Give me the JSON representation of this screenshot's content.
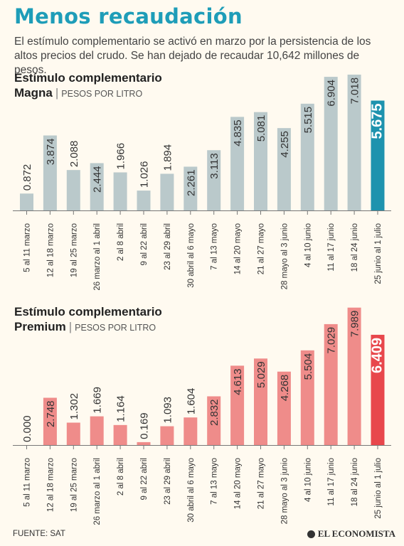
{
  "header": {
    "title": "Menos recaudación",
    "subtitle": "El estímulo complementario se activó en marzo por la persistencia de los altos precios del crudo. Se han dejado de recaudar 10,642 millones de pesos."
  },
  "footer": {
    "source": "FUENTE: SAT",
    "brand": "EL ECONOMISTA"
  },
  "chart_data": [
    {
      "type": "bar",
      "title_line1": "Estímulo complementario",
      "title_line2": "Magna",
      "unit": "PESOS POR LITRO",
      "categories": [
        "5 al 11 marzo",
        "12 al 18 marzo",
        "19 al 25 marzo",
        "26 marzo al 1 abril",
        "2 al 8 abril",
        "9 al 22 abril",
        "23 al 29  abril",
        "30 abril al 6 mayo",
        "7 al 13 mayo",
        "14 al 20 mayo",
        "21 al 27 mayo",
        "28 mayo al 3 junio",
        "4 al 10 junio",
        "11 al 17 junio",
        "18 al 24 junio",
        "25 junio al 1 julio"
      ],
      "values": [
        0.872,
        3.874,
        2.088,
        2.444,
        1.966,
        1.026,
        1.894,
        2.261,
        3.113,
        4.835,
        5.081,
        4.255,
        5.515,
        6.904,
        7.018,
        5.675
      ],
      "labels": [
        "0.872",
        "3.874",
        "2.088",
        "2.444",
        "1.966",
        "1.026",
        "1.894",
        "2.261",
        "3.113",
        "4.835",
        "5.081",
        "4.255",
        "5.515",
        "6.904",
        "7.018",
        "5.675"
      ],
      "ylim": [
        0,
        7.2
      ],
      "bar_color": "#bac9cb",
      "highlight_color": "#1e93ae",
      "highlight_index": 15
    },
    {
      "type": "bar",
      "title_line1": "Estímulo complementario",
      "title_line2": "Premium",
      "unit": "PESOS POR LITRO",
      "categories": [
        "5 al 11 marzo",
        "12 al 18 marzo",
        "19 al 25 marzo",
        "26 marzo al 1 abril",
        "2 al 8 abril",
        "9 al 22 abril",
        "23 al 29  abril",
        "30 abril al 6 mayo",
        "7 al 13 mayo",
        "14 al 20 mayo",
        "21 al 27 mayo",
        "28 mayo al 3 junio",
        "4 al 10 junio",
        "11 al 17 junio",
        "18 al 24 junio",
        "25 junio al 1 julio"
      ],
      "values": [
        0.0,
        2.748,
        1.302,
        1.669,
        1.164,
        0.169,
        1.093,
        1.604,
        2.832,
        4.613,
        5.029,
        4.268,
        5.504,
        7.029,
        7.989,
        6.409
      ],
      "labels": [
        "0.000",
        "2.748",
        "1.302",
        "1.669",
        "1.164",
        "0.169",
        "1.093",
        "1.604",
        "2.832",
        "4.613",
        "5.029",
        "4.268",
        "5.504",
        "7.029",
        "7.989",
        "6.409"
      ],
      "ylim": [
        0,
        8.1
      ],
      "bar_color": "#ef8c8a",
      "highlight_color": "#e8474c",
      "highlight_index": 15
    }
  ]
}
